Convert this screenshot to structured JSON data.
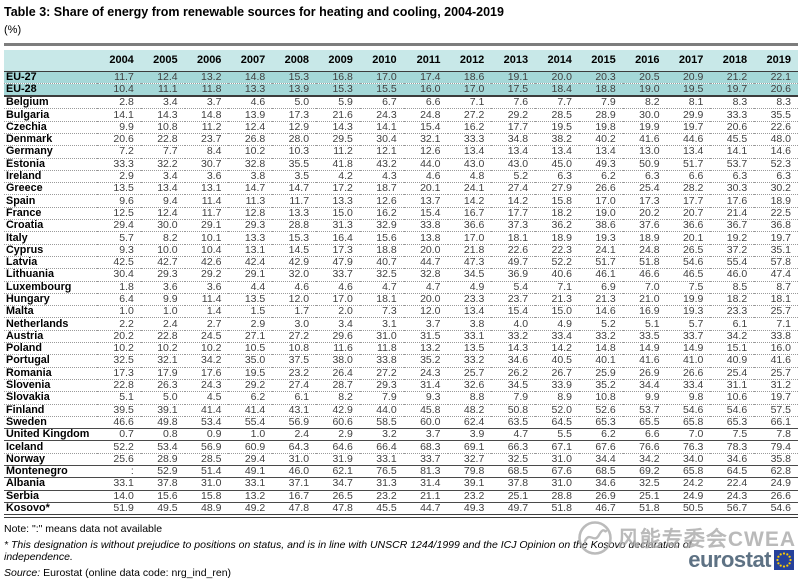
{
  "title": "Table 3: Share of energy from renewable sources for heating and cooling, 2004-2019",
  "unit": "(%)",
  "chart_data": {
    "type": "table",
    "title": "Share of energy from renewable sources for heating and cooling, 2004-2019",
    "unit": "%",
    "columns": [
      "2004",
      "2005",
      "2006",
      "2007",
      "2008",
      "2009",
      "2010",
      "2011",
      "2012",
      "2013",
      "2014",
      "2015",
      "2016",
      "2017",
      "2018",
      "2019"
    ],
    "rows": [
      {
        "name": "EU-27",
        "highlight": true,
        "sep": "none",
        "values": [
          "11.7",
          "12.4",
          "13.2",
          "14.8",
          "15.3",
          "16.8",
          "17.0",
          "17.4",
          "18.6",
          "19.1",
          "20.0",
          "20.3",
          "20.5",
          "20.9",
          "21.2",
          "22.1"
        ]
      },
      {
        "name": "EU-28",
        "highlight": true,
        "sep": "dotted",
        "values": [
          "10.4",
          "11.1",
          "11.8",
          "13.3",
          "13.9",
          "15.3",
          "15.5",
          "16.0",
          "17.0",
          "17.5",
          "18.4",
          "18.8",
          "19.0",
          "19.5",
          "19.7",
          "20.6"
        ]
      },
      {
        "name": "Belgium",
        "highlight": false,
        "sep": "strong",
        "values": [
          "2.8",
          "3.4",
          "3.7",
          "4.6",
          "5.0",
          "5.9",
          "6.7",
          "6.6",
          "7.1",
          "7.6",
          "7.7",
          "7.9",
          "8.2",
          "8.1",
          "8.3",
          "8.3"
        ]
      },
      {
        "name": "Bulgaria",
        "highlight": false,
        "sep": "dotted",
        "values": [
          "14.1",
          "14.3",
          "14.8",
          "13.9",
          "17.3",
          "21.6",
          "24.3",
          "24.8",
          "27.2",
          "29.2",
          "28.5",
          "28.9",
          "30.0",
          "29.9",
          "33.3",
          "35.5"
        ]
      },
      {
        "name": "Czechia",
        "highlight": false,
        "sep": "dotted",
        "values": [
          "9.9",
          "10.8",
          "11.2",
          "12.4",
          "12.9",
          "14.3",
          "14.1",
          "15.4",
          "16.2",
          "17.7",
          "19.5",
          "19.8",
          "19.9",
          "19.7",
          "20.6",
          "22.6"
        ]
      },
      {
        "name": "Denmark",
        "highlight": false,
        "sep": "dotted",
        "values": [
          "20.6",
          "22.8",
          "23.7",
          "26.8",
          "28.0",
          "29.5",
          "30.4",
          "32.1",
          "33.3",
          "34.8",
          "38.2",
          "40.2",
          "41.6",
          "44.6",
          "45.5",
          "48.0"
        ]
      },
      {
        "name": "Germany",
        "highlight": false,
        "sep": "dotted",
        "values": [
          "7.2",
          "7.7",
          "8.4",
          "10.2",
          "10.3",
          "11.2",
          "12.1",
          "12.6",
          "13.4",
          "13.4",
          "13.4",
          "13.4",
          "13.0",
          "13.4",
          "14.1",
          "14.6"
        ]
      },
      {
        "name": "Estonia",
        "highlight": false,
        "sep": "dotted",
        "values": [
          "33.3",
          "32.2",
          "30.7",
          "32.8",
          "35.5",
          "41.8",
          "43.2",
          "44.0",
          "43.0",
          "43.0",
          "45.0",
          "49.3",
          "50.9",
          "51.7",
          "53.7",
          "52.3"
        ]
      },
      {
        "name": "Ireland",
        "highlight": false,
        "sep": "dotted",
        "values": [
          "2.9",
          "3.4",
          "3.6",
          "3.8",
          "3.5",
          "4.2",
          "4.3",
          "4.6",
          "4.8",
          "5.2",
          "6.3",
          "6.2",
          "6.3",
          "6.6",
          "6.3",
          "6.3"
        ]
      },
      {
        "name": "Greece",
        "highlight": false,
        "sep": "dotted",
        "values": [
          "13.5",
          "13.4",
          "13.1",
          "14.7",
          "14.7",
          "17.2",
          "18.7",
          "20.1",
          "24.1",
          "27.4",
          "27.9",
          "26.6",
          "25.4",
          "28.2",
          "30.3",
          "30.2"
        ]
      },
      {
        "name": "Spain",
        "highlight": false,
        "sep": "dotted",
        "values": [
          "9.6",
          "9.4",
          "11.4",
          "11.3",
          "11.7",
          "13.3",
          "12.6",
          "13.7",
          "14.2",
          "14.2",
          "15.8",
          "17.0",
          "17.3",
          "17.7",
          "17.6",
          "18.9"
        ]
      },
      {
        "name": "France",
        "highlight": false,
        "sep": "dotted",
        "values": [
          "12.5",
          "12.4",
          "11.7",
          "12.8",
          "13.3",
          "15.0",
          "16.2",
          "15.4",
          "16.7",
          "17.7",
          "18.2",
          "19.0",
          "20.2",
          "20.7",
          "21.4",
          "22.5"
        ]
      },
      {
        "name": "Croatia",
        "highlight": false,
        "sep": "dotted",
        "values": [
          "29.4",
          "30.0",
          "29.1",
          "29.3",
          "28.8",
          "31.3",
          "32.9",
          "33.8",
          "36.6",
          "37.3",
          "36.2",
          "38.6",
          "37.6",
          "36.6",
          "36.7",
          "36.8"
        ]
      },
      {
        "name": "Italy",
        "highlight": false,
        "sep": "dotted",
        "values": [
          "5.7",
          "8.2",
          "10.1",
          "13.3",
          "15.3",
          "16.4",
          "15.6",
          "13.8",
          "17.0",
          "18.1",
          "18.9",
          "19.3",
          "18.9",
          "20.1",
          "19.2",
          "19.7"
        ]
      },
      {
        "name": "Cyprus",
        "highlight": false,
        "sep": "dotted",
        "values": [
          "9.3",
          "10.0",
          "10.4",
          "13.1",
          "14.5",
          "17.3",
          "18.8",
          "20.0",
          "21.8",
          "22.6",
          "22.3",
          "24.1",
          "24.8",
          "26.5",
          "37.2",
          "35.1"
        ]
      },
      {
        "name": "Latvia",
        "highlight": false,
        "sep": "dotted",
        "values": [
          "42.5",
          "42.7",
          "42.6",
          "42.4",
          "42.9",
          "47.9",
          "40.7",
          "44.7",
          "47.3",
          "49.7",
          "52.2",
          "51.7",
          "51.8",
          "54.6",
          "55.4",
          "57.8"
        ]
      },
      {
        "name": "Lithuania",
        "highlight": false,
        "sep": "dotted",
        "values": [
          "30.4",
          "29.3",
          "29.2",
          "29.1",
          "32.0",
          "33.7",
          "32.5",
          "32.8",
          "34.5",
          "36.9",
          "40.6",
          "46.1",
          "46.6",
          "46.5",
          "46.0",
          "47.4"
        ]
      },
      {
        "name": "Luxembourg",
        "highlight": false,
        "sep": "dotted",
        "values": [
          "1.8",
          "3.6",
          "3.6",
          "4.4",
          "4.6",
          "4.6",
          "4.7",
          "4.7",
          "4.9",
          "5.4",
          "7.1",
          "6.9",
          "7.0",
          "7.5",
          "8.5",
          "8.7"
        ]
      },
      {
        "name": "Hungary",
        "highlight": false,
        "sep": "dotted",
        "values": [
          "6.4",
          "9.9",
          "11.4",
          "13.5",
          "12.0",
          "17.0",
          "18.1",
          "20.0",
          "23.3",
          "23.7",
          "21.3",
          "21.3",
          "21.0",
          "19.9",
          "18.2",
          "18.1"
        ]
      },
      {
        "name": "Malta",
        "highlight": false,
        "sep": "dotted",
        "values": [
          "1.0",
          "1.0",
          "1.4",
          "1.5",
          "1.7",
          "2.0",
          "7.3",
          "12.0",
          "13.4",
          "15.4",
          "15.0",
          "14.6",
          "16.9",
          "19.3",
          "23.3",
          "25.7"
        ]
      },
      {
        "name": "Netherlands",
        "highlight": false,
        "sep": "dotted",
        "values": [
          "2.2",
          "2.4",
          "2.7",
          "2.9",
          "3.0",
          "3.4",
          "3.1",
          "3.7",
          "3.8",
          "4.0",
          "4.9",
          "5.2",
          "5.1",
          "5.7",
          "6.1",
          "7.1"
        ]
      },
      {
        "name": "Austria",
        "highlight": false,
        "sep": "dotted",
        "values": [
          "20.2",
          "22.8",
          "24.5",
          "27.1",
          "27.2",
          "29.6",
          "31.0",
          "31.5",
          "33.1",
          "33.2",
          "33.4",
          "33.2",
          "33.5",
          "33.7",
          "34.2",
          "33.8"
        ]
      },
      {
        "name": "Poland",
        "highlight": false,
        "sep": "dotted",
        "values": [
          "10.2",
          "10.2",
          "10.2",
          "10.5",
          "10.8",
          "11.6",
          "11.8",
          "13.2",
          "13.5",
          "14.3",
          "14.2",
          "14.8",
          "14.9",
          "14.9",
          "15.1",
          "16.0"
        ]
      },
      {
        "name": "Portugal",
        "highlight": false,
        "sep": "dotted",
        "values": [
          "32.5",
          "32.1",
          "34.2",
          "35.0",
          "37.5",
          "38.0",
          "33.8",
          "35.2",
          "33.2",
          "34.6",
          "40.5",
          "40.1",
          "41.6",
          "41.0",
          "40.9",
          "41.6"
        ]
      },
      {
        "name": "Romania",
        "highlight": false,
        "sep": "dotted",
        "values": [
          "17.3",
          "17.9",
          "17.6",
          "19.5",
          "23.2",
          "26.4",
          "27.2",
          "24.3",
          "25.7",
          "26.2",
          "26.7",
          "25.9",
          "26.9",
          "26.6",
          "25.4",
          "25.7"
        ]
      },
      {
        "name": "Slovenia",
        "highlight": false,
        "sep": "dotted",
        "values": [
          "22.8",
          "26.3",
          "24.3",
          "29.2",
          "27.4",
          "28.7",
          "29.3",
          "31.4",
          "32.6",
          "34.5",
          "33.9",
          "35.2",
          "34.4",
          "33.4",
          "31.1",
          "31.2"
        ]
      },
      {
        "name": "Slovakia",
        "highlight": false,
        "sep": "dotted",
        "values": [
          "5.1",
          "5.0",
          "4.5",
          "6.2",
          "6.1",
          "8.2",
          "7.9",
          "9.3",
          "8.8",
          "7.9",
          "8.9",
          "10.8",
          "9.9",
          "9.8",
          "10.6",
          "19.7"
        ]
      },
      {
        "name": "Finland",
        "highlight": false,
        "sep": "dotted",
        "values": [
          "39.5",
          "39.1",
          "41.4",
          "41.4",
          "43.1",
          "42.9",
          "44.0",
          "45.8",
          "48.2",
          "50.8",
          "52.0",
          "52.6",
          "53.7",
          "54.6",
          "54.6",
          "57.5"
        ]
      },
      {
        "name": "Sweden",
        "highlight": false,
        "sep": "dotted",
        "values": [
          "46.6",
          "49.8",
          "53.4",
          "55.4",
          "56.9",
          "60.6",
          "58.5",
          "60.0",
          "62.4",
          "63.5",
          "64.5",
          "65.3",
          "65.5",
          "65.8",
          "65.3",
          "66.1"
        ]
      },
      {
        "name": "United Kingdom",
        "highlight": false,
        "sep": "solid",
        "values": [
          "0.7",
          "0.8",
          "0.9",
          "1.0",
          "2.4",
          "2.9",
          "3.2",
          "3.7",
          "3.9",
          "4.7",
          "5.5",
          "6.2",
          "6.6",
          "7.0",
          "7.5",
          "7.8"
        ]
      },
      {
        "name": "Iceland",
        "highlight": false,
        "sep": "solid",
        "values": [
          "52.2",
          "53.4",
          "56.9",
          "60.9",
          "64.3",
          "64.6",
          "66.4",
          "68.3",
          "69.1",
          "66.3",
          "67.1",
          "67.6",
          "76.6",
          "76.3",
          "78.3",
          "79.4"
        ]
      },
      {
        "name": "Norway",
        "highlight": false,
        "sep": "dotted",
        "values": [
          "25.6",
          "28.9",
          "28.5",
          "29.4",
          "31.0",
          "31.9",
          "33.1",
          "33.7",
          "32.7",
          "32.5",
          "31.0",
          "34.4",
          "34.2",
          "34.0",
          "34.6",
          "35.8"
        ]
      },
      {
        "name": "Montenegro",
        "highlight": false,
        "sep": "solid",
        "values": [
          ":",
          "52.9",
          "51.4",
          "49.1",
          "46.0",
          "62.1",
          "76.5",
          "81.3",
          "79.8",
          "68.5",
          "67.6",
          "68.5",
          "69.2",
          "65.8",
          "64.5",
          "62.8"
        ]
      },
      {
        "name": "Albania",
        "highlight": false,
        "sep": "solid",
        "values": [
          "33.1",
          "37.8",
          "31.0",
          "33.1",
          "37.1",
          "34.7",
          "31.3",
          "31.4",
          "39.1",
          "37.8",
          "31.0",
          "34.6",
          "32.5",
          "24.2",
          "22.4",
          "24.9"
        ]
      },
      {
        "name": "Serbia",
        "highlight": false,
        "sep": "solid",
        "values": [
          "14.0",
          "15.6",
          "15.8",
          "13.2",
          "16.7",
          "26.5",
          "23.2",
          "21.1",
          "23.2",
          "25.1",
          "28.8",
          "26.9",
          "25.1",
          "24.9",
          "24.3",
          "26.6"
        ]
      },
      {
        "name": "Kosovo*",
        "highlight": false,
        "sep": "solid",
        "values": [
          "51.9",
          "49.5",
          "48.9",
          "49.2",
          "47.8",
          "47.8",
          "45.5",
          "44.7",
          "49.3",
          "49.7",
          "51.8",
          "46.7",
          "51.8",
          "50.5",
          "56.7",
          "54.6"
        ]
      }
    ]
  },
  "notes": {
    "note": "Note: \":\" means data not available",
    "footnote": "* This designation is without prejudice to positions on status, and is in line with UNSCR 1244/1999 and the ICJ Opinion on the Kosovo declaration of independence.",
    "source_label": "Source:",
    "source_text": " Eurostat (online data code: nrg_ind_ren)"
  },
  "watermark": {
    "text": "风能专委会CWEA"
  },
  "logo": {
    "text": "eurostat"
  },
  "colors": {
    "header_bg": "#c8e8e8",
    "eu_row_bg": "#a5d8d8",
    "rule_gray": "#7d7d7d",
    "border_dark": "#3c3c3c",
    "dotted_gray": "#9a9a9a",
    "value_text": "#404040",
    "eurostat_blue_gray": "#5e7284",
    "eu_flag_blue": "#26419a",
    "star_yellow": "#ffcc00",
    "watermark_gray": "#a9a9a9"
  }
}
